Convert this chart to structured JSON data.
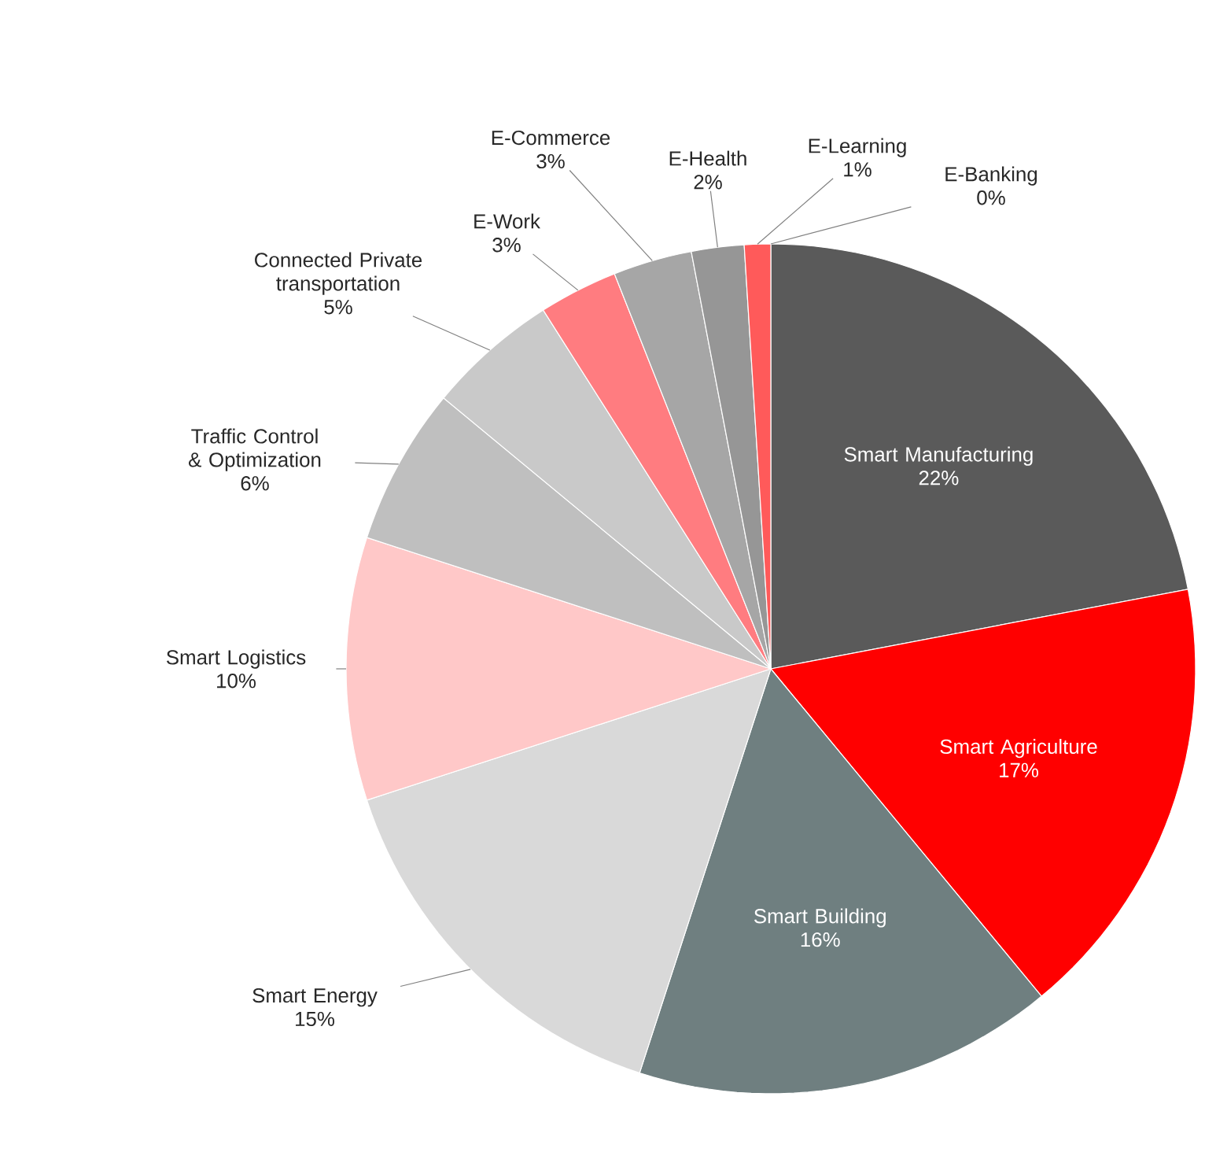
{
  "chart_data": {
    "type": "pie",
    "categories": [
      "Smart Manufacturing",
      "Smart Agriculture",
      "Smart Building",
      "Smart Energy",
      "Smart Logistics",
      "Traffic Control & Optimization",
      "Connected Private transportation",
      "E-Work",
      "E-Commerce",
      "E-Health",
      "E-Learning",
      "E-Banking"
    ],
    "values": [
      22,
      17,
      16,
      15,
      10,
      6,
      5,
      3,
      3,
      2,
      1,
      0
    ],
    "value_labels": [
      "22%",
      "17%",
      "16%",
      "15%",
      "10%",
      "6%",
      "5%",
      "3%",
      "3%",
      "2%",
      "1%",
      "0%"
    ],
    "colors": [
      "#5a5a5a",
      "#ff0000",
      "#6f7f80",
      "#d9d9d9",
      "#ffc8c8",
      "#bfbfbf",
      "#c9c9c9",
      "#ff7c80",
      "#a6a6a6",
      "#969696",
      "#ff5a5a",
      "#ff0000"
    ],
    "legend": false
  }
}
